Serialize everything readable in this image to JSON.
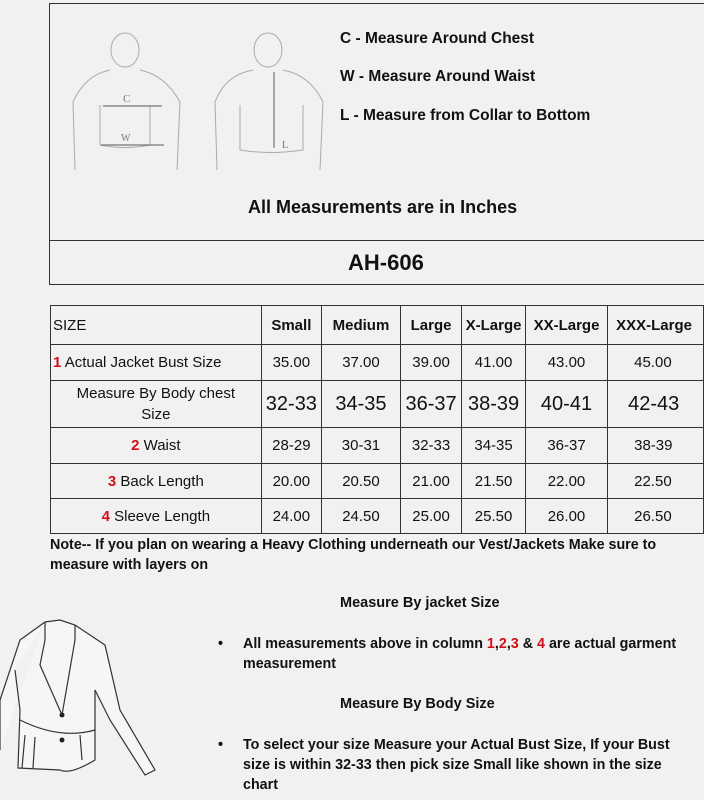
{
  "header": {
    "legend": [
      {
        "text": "C -  Measure Around Chest"
      },
      {
        "text": "W - Measure Around Waist"
      },
      {
        "text": "L -  Measure from Collar to Bottom"
      }
    ],
    "figure_labels": {
      "c": "C",
      "w": "W",
      "l": "L"
    },
    "units_note": "All Measurements are in Inches",
    "model": "AH-606"
  },
  "table": {
    "columns": [
      "SIZE",
      "Small",
      "Medium",
      "Large",
      "X-Large",
      "XX-Large",
      "XXX-Large"
    ],
    "rows": [
      {
        "num": "1",
        "label": "Actual Jacket Bust Size",
        "values": [
          "35.00",
          "37.00",
          "39.00",
          "41.00",
          "43.00",
          "45.00"
        ]
      },
      {
        "num": "",
        "label": "Measure By Body chest Size",
        "values": [
          "32-33",
          "34-35",
          "36-37",
          "38-39",
          "40-41",
          "42-43"
        ]
      },
      {
        "num": "2",
        "label": "Waist",
        "values": [
          "28-29",
          "30-31",
          "32-33",
          "34-35",
          "36-37",
          "38-39"
        ]
      },
      {
        "num": "3",
        "label": "Back Length",
        "values": [
          "20.00",
          "20.50",
          "21.00",
          "21.50",
          "22.00",
          "22.50"
        ]
      },
      {
        "num": "4",
        "label": "Sleeve Length",
        "values": [
          "24.00",
          "24.50",
          "25.00",
          "25.50",
          "26.00",
          "26.50"
        ]
      }
    ]
  },
  "note": "Note-- If you plan on wearing a Heavy Clothing underneath our Vest/Jackets Make sure to measure with layers on",
  "section1": {
    "title": "Measure By jacket Size",
    "bullet_pre": "All measurements above in column ",
    "nums": [
      "1",
      ",",
      "2",
      ",",
      "3",
      " & ",
      "4"
    ],
    "bullet_post": " are actual garment measurement"
  },
  "section2": {
    "title": "Measure By Body Size",
    "bullet": "To select your size Measure your Actual Bust Size, If your Bust size is within 32-33 then pick size Small like shown in the size chart"
  },
  "colors": {
    "accent_red": "#d0101a",
    "border": "#333333",
    "background": "#f1f1f1"
  }
}
